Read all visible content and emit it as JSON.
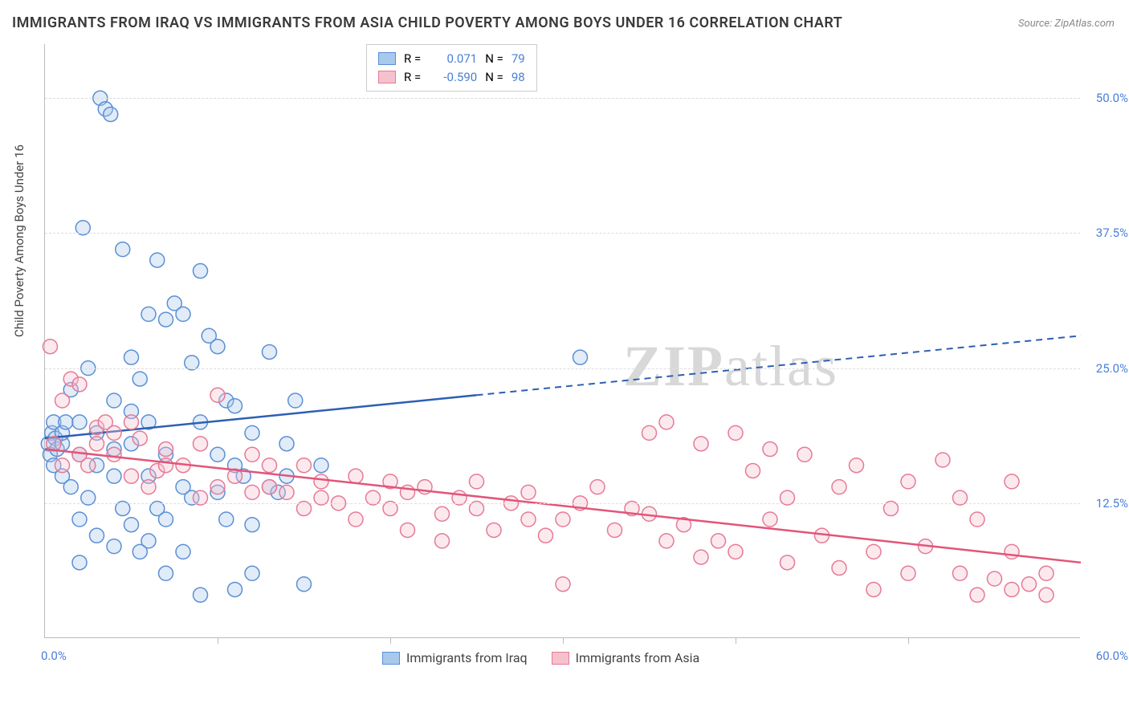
{
  "title": "IMMIGRANTS FROM IRAQ VS IMMIGRANTS FROM ASIA CHILD POVERTY AMONG BOYS UNDER 16 CORRELATION CHART",
  "source": "Source: ZipAtlas.com",
  "ylabel": "Child Poverty Among Boys Under 16",
  "watermark_bold": "ZIP",
  "watermark_light": "atlas",
  "chart": {
    "type": "scatter",
    "xlim": [
      0,
      60
    ],
    "ylim": [
      0,
      55
    ],
    "xlabel_min": "0.0%",
    "xlabel_max": "60.0%",
    "ytick_values": [
      12.5,
      25.0,
      37.5,
      50.0
    ],
    "ytick_labels": [
      "12.5%",
      "25.0%",
      "37.5%",
      "50.0%"
    ],
    "xtick_positions": [
      10,
      20,
      30,
      40,
      50
    ],
    "grid_color": "#dddddd",
    "background_color": "#ffffff",
    "marker_radius": 9,
    "marker_opacity": 0.35,
    "marker_stroke_width": 1.5,
    "trend_width": 2.5,
    "series": [
      {
        "name": "Immigrants from Iraq",
        "color_fill": "#a8c8ec",
        "color_stroke": "#5b8fd6",
        "trend_color": "#2e5fb3",
        "R": "0.071",
        "N": "79",
        "trend": {
          "x1": 0,
          "y1": 18.5,
          "x2_solid": 25,
          "y2_solid": 22.5,
          "x2": 60,
          "y2": 28
        },
        "points": [
          [
            0.2,
            18
          ],
          [
            0.3,
            17
          ],
          [
            0.4,
            19
          ],
          [
            0.5,
            16
          ],
          [
            0.5,
            20
          ],
          [
            0.6,
            18.5
          ],
          [
            0.7,
            17.5
          ],
          [
            1,
            18
          ],
          [
            1,
            19
          ],
          [
            1,
            15
          ],
          [
            1.2,
            20
          ],
          [
            1.5,
            23
          ],
          [
            1.5,
            14
          ],
          [
            2,
            17
          ],
          [
            2,
            20
          ],
          [
            2,
            11
          ],
          [
            2.2,
            38
          ],
          [
            2.5,
            25
          ],
          [
            2.5,
            13
          ],
          [
            3,
            16
          ],
          [
            3,
            19
          ],
          [
            3.2,
            50
          ],
          [
            3.5,
            49
          ],
          [
            3.8,
            48.5
          ],
          [
            4,
            22
          ],
          [
            4,
            15
          ],
          [
            4,
            17.5
          ],
          [
            4.5,
            36
          ],
          [
            4.5,
            12
          ],
          [
            5,
            21
          ],
          [
            5,
            18
          ],
          [
            5,
            10.5
          ],
          [
            5,
            26
          ],
          [
            5.5,
            24
          ],
          [
            6,
            20
          ],
          [
            6,
            15
          ],
          [
            6,
            30
          ],
          [
            6.5,
            12
          ],
          [
            6.5,
            35
          ],
          [
            7,
            11
          ],
          [
            7,
            17
          ],
          [
            7,
            29.5
          ],
          [
            7.5,
            31
          ],
          [
            8,
            14
          ],
          [
            8,
            30
          ],
          [
            8.5,
            13
          ],
          [
            8.5,
            25.5
          ],
          [
            9,
            20
          ],
          [
            9,
            34
          ],
          [
            9.5,
            28
          ],
          [
            10,
            17
          ],
          [
            10,
            13.5
          ],
          [
            10,
            27
          ],
          [
            10.5,
            22
          ],
          [
            10.5,
            11
          ],
          [
            11,
            16
          ],
          [
            11,
            21.5
          ],
          [
            11.5,
            15
          ],
          [
            12,
            19
          ],
          [
            12,
            10.5
          ],
          [
            13,
            14
          ],
          [
            13,
            26.5
          ],
          [
            13.5,
            13.5
          ],
          [
            14,
            15
          ],
          [
            14.5,
            22
          ],
          [
            9,
            4
          ],
          [
            7,
            6
          ],
          [
            5.5,
            8
          ],
          [
            8,
            8
          ],
          [
            4,
            8.5
          ],
          [
            6,
            9
          ],
          [
            11,
            4.5
          ],
          [
            3,
            9.5
          ],
          [
            2,
            7
          ],
          [
            15,
            5
          ],
          [
            31,
            26
          ],
          [
            12,
            6
          ],
          [
            14,
            18
          ],
          [
            16,
            16
          ]
        ]
      },
      {
        "name": "Immigrants from Asia",
        "color_fill": "#f5c1cd",
        "color_stroke": "#e67a96",
        "trend_color": "#e15579",
        "R": "-0.590",
        "N": "98",
        "trend": {
          "x1": 0,
          "y1": 17.5,
          "x2_solid": 60,
          "y2_solid": 7,
          "x2": 60,
          "y2": 7
        },
        "points": [
          [
            0.3,
            27
          ],
          [
            0.5,
            18
          ],
          [
            1,
            16
          ],
          [
            1,
            22
          ],
          [
            1.5,
            24
          ],
          [
            2,
            23.5
          ],
          [
            2,
            17
          ],
          [
            2.5,
            16
          ],
          [
            3,
            19.5
          ],
          [
            3,
            18
          ],
          [
            3.5,
            20
          ],
          [
            4,
            17
          ],
          [
            4,
            19
          ],
          [
            5,
            15
          ],
          [
            5,
            20
          ],
          [
            5.5,
            18.5
          ],
          [
            6,
            14
          ],
          [
            6.5,
            15.5
          ],
          [
            7,
            16
          ],
          [
            7,
            17.5
          ],
          [
            8,
            16
          ],
          [
            9,
            13
          ],
          [
            9,
            18
          ],
          [
            10,
            22.5
          ],
          [
            10,
            14
          ],
          [
            11,
            15
          ],
          [
            12,
            13.5
          ],
          [
            12,
            17
          ],
          [
            13,
            14
          ],
          [
            13,
            16
          ],
          [
            14,
            13.5
          ],
          [
            15,
            16
          ],
          [
            15,
            12
          ],
          [
            16,
            14.5
          ],
          [
            16,
            13
          ],
          [
            17,
            12.5
          ],
          [
            18,
            15
          ],
          [
            18,
            11
          ],
          [
            19,
            13
          ],
          [
            20,
            14.5
          ],
          [
            20,
            12
          ],
          [
            21,
            13.5
          ],
          [
            21,
            10
          ],
          [
            22,
            14
          ],
          [
            23,
            11.5
          ],
          [
            23,
            9
          ],
          [
            24,
            13
          ],
          [
            25,
            12
          ],
          [
            25,
            14.5
          ],
          [
            26,
            10
          ],
          [
            27,
            12.5
          ],
          [
            28,
            11
          ],
          [
            28,
            13.5
          ],
          [
            29,
            9.5
          ],
          [
            30,
            5
          ],
          [
            30,
            11
          ],
          [
            31,
            12.5
          ],
          [
            32,
            14
          ],
          [
            33,
            10
          ],
          [
            34,
            12
          ],
          [
            35,
            11.5
          ],
          [
            35,
            19
          ],
          [
            36,
            9
          ],
          [
            36,
            20
          ],
          [
            37,
            10.5
          ],
          [
            38,
            18
          ],
          [
            38,
            7.5
          ],
          [
            39,
            9
          ],
          [
            40,
            19
          ],
          [
            40,
            8
          ],
          [
            41,
            15.5
          ],
          [
            42,
            11
          ],
          [
            42,
            17.5
          ],
          [
            43,
            13
          ],
          [
            43,
            7
          ],
          [
            44,
            17
          ],
          [
            45,
            9.5
          ],
          [
            46,
            14
          ],
          [
            46,
            6.5
          ],
          [
            47,
            16
          ],
          [
            48,
            8
          ],
          [
            48,
            4.5
          ],
          [
            49,
            12
          ],
          [
            50,
            6
          ],
          [
            50,
            14.5
          ],
          [
            51,
            8.5
          ],
          [
            52,
            16.5
          ],
          [
            53,
            6
          ],
          [
            53,
            13
          ],
          [
            54,
            4
          ],
          [
            54,
            11
          ],
          [
            55,
            5.5
          ],
          [
            56,
            14.5
          ],
          [
            56,
            4.5
          ],
          [
            56,
            8
          ],
          [
            57,
            5
          ],
          [
            58,
            6
          ],
          [
            58,
            4
          ]
        ]
      }
    ]
  },
  "legend_top": {
    "r_label": "R =",
    "n_label": "N ="
  },
  "legend_bottom": {
    "label1": "Immigrants from Iraq",
    "label2": "Immigrants from Asia"
  }
}
